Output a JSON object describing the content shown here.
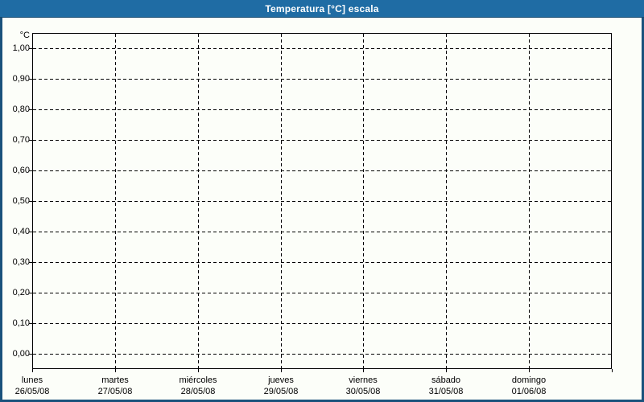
{
  "window": {
    "title": "Temperatura [°C] escala"
  },
  "chart_data": {
    "type": "line",
    "title": "Temperatura [°C] escala",
    "subtitle": "",
    "xlabel": "",
    "ylabel": "°C",
    "unit_label": "°C",
    "ylim": [
      -0.05,
      1.05
    ],
    "grid": "dashed",
    "legend": "none",
    "series": [],
    "y_ticks": [
      {
        "label": "1,00",
        "value": 1.0
      },
      {
        "label": "0,90",
        "value": 0.9
      },
      {
        "label": "0,80",
        "value": 0.8
      },
      {
        "label": "0,70",
        "value": 0.7
      },
      {
        "label": "0,60",
        "value": 0.6
      },
      {
        "label": "0,50",
        "value": 0.5
      },
      {
        "label": "0,40",
        "value": 0.4
      },
      {
        "label": "0,30",
        "value": 0.3
      },
      {
        "label": "0,20",
        "value": 0.2
      },
      {
        "label": "0,10",
        "value": 0.1
      },
      {
        "label": "0,00",
        "value": 0.0
      }
    ],
    "x_divisions": 7,
    "x_categories": [
      {
        "weekday": "lunes",
        "date": "26/05/08"
      },
      {
        "weekday": "martes",
        "date": "27/05/08"
      },
      {
        "weekday": "miércoles",
        "date": "28/05/08"
      },
      {
        "weekday": "jueves",
        "date": "29/05/08"
      },
      {
        "weekday": "viernes",
        "date": "30/05/08"
      },
      {
        "weekday": "sábado",
        "date": "31/05/08"
      },
      {
        "weekday": "domingo",
        "date": "01/06/08"
      }
    ]
  },
  "colors": {
    "titlebar": "#1F6CA4",
    "frame": "#1A527C",
    "background": "#FCFEF9",
    "plot_border": "#000000",
    "gridline": "#000000",
    "text": "#000000",
    "title_text": "#FFFFFF"
  }
}
